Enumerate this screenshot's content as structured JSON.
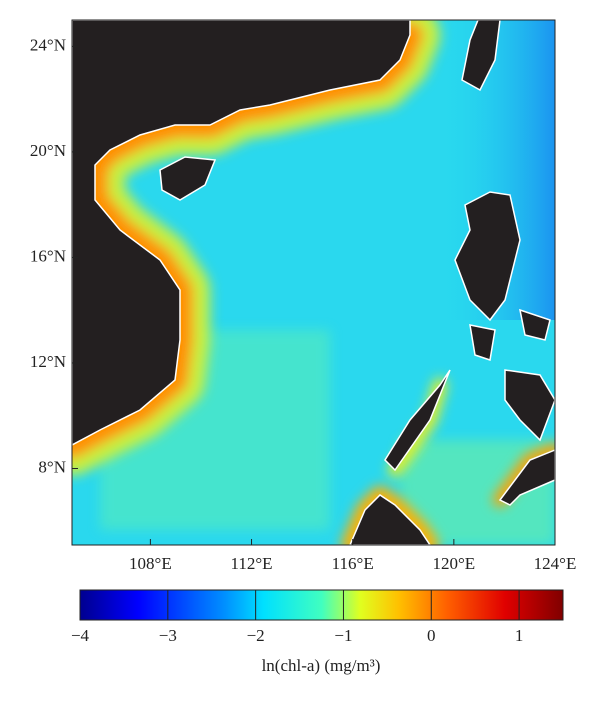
{
  "chart_data": {
    "type": "map",
    "xlim": [
      104.9,
      124
    ],
    "ylim": [
      5.1,
      25
    ],
    "xticks": [
      {
        "value": 108,
        "label": "108°E"
      },
      {
        "value": 112,
        "label": "112°E"
      },
      {
        "value": 116,
        "label": "116°E"
      },
      {
        "value": 120,
        "label": "120°E"
      },
      {
        "value": 124,
        "label": "124°E"
      }
    ],
    "yticks": [
      {
        "value": 8,
        "label": "8°N"
      },
      {
        "value": 12,
        "label": "12°N"
      },
      {
        "value": 16,
        "label": "16°N"
      },
      {
        "value": 20,
        "label": "20°N"
      },
      {
        "value": 24,
        "label": "24°N"
      }
    ],
    "colorbar": {
      "label": "ln(chl-a) (mg/m³)",
      "lim": [
        -4,
        1.5
      ],
      "ticks": [
        {
          "value": -4,
          "label": "−4"
        },
        {
          "value": -3,
          "label": "−3"
        },
        {
          "value": -2,
          "label": "−2"
        },
        {
          "value": -1,
          "label": "−1"
        },
        0,
        1
      ]
    }
  }
}
